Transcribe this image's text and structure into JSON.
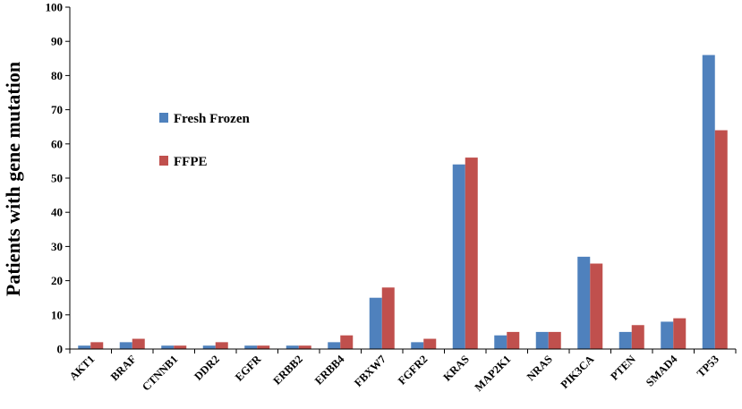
{
  "chart_data": {
    "type": "bar",
    "title": "",
    "xlabel": "",
    "ylabel": "Patients with gene mutation",
    "ylim": [
      0,
      100
    ],
    "yticks": [
      0,
      10,
      20,
      30,
      40,
      50,
      60,
      70,
      80,
      90,
      100
    ],
    "grid": false,
    "legend_position": "left-center",
    "categories": [
      "AKT1",
      "BRAF",
      "CTNNB1",
      "DDR2",
      "EGFR",
      "ERBB2",
      "ERBB4",
      "FBXW7",
      "FGFR2",
      "KRAS",
      "MAP2K1",
      "NRAS",
      "PIK3CA",
      "PTEN",
      "SMAD4",
      "TP53"
    ],
    "series": [
      {
        "name": "Fresh Frozen",
        "color": "#4F81BD",
        "values": [
          1,
          2,
          1,
          1,
          1,
          1,
          2,
          15,
          2,
          54,
          4,
          5,
          27,
          5,
          8,
          86
        ]
      },
      {
        "name": "FFPE",
        "color": "#C0504D",
        "values": [
          2,
          3,
          1,
          2,
          1,
          1,
          4,
          18,
          3,
          56,
          5,
          5,
          25,
          7,
          9,
          64
        ]
      }
    ]
  }
}
